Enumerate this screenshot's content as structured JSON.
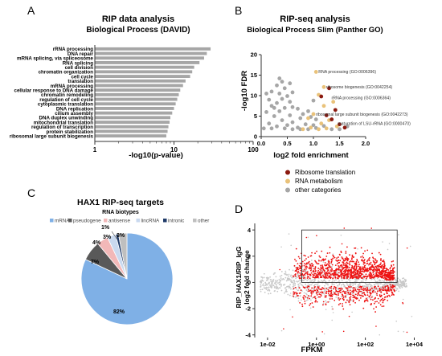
{
  "panels": {
    "A": {
      "letter": "A"
    },
    "B": {
      "letter": "B"
    },
    "C": {
      "letter": "C"
    },
    "D": {
      "letter": "D"
    }
  },
  "colors": {
    "bar_gray": "#a6a6a6",
    "ribosome": "#8b1a10",
    "rna": "#e9c27a",
    "other": "#a6a6a6",
    "mrna": "#7fb0e6",
    "pseudogene": "#595959",
    "antisense": "#f2b8b8",
    "lincrna": "#c9d9ef",
    "intronic": "#1f3a68",
    "other_biotype": "#bfbfbf",
    "red": "#ee1111",
    "light_gray": "#c8c8c8"
  },
  "chart_data": [
    {
      "type": "bar",
      "panel": "A",
      "orientation": "horizontal",
      "title": "RIP data analysis",
      "subtitle": "Biological Process (DAVID)",
      "xlabel": "-log10(p-value)",
      "xscale": "log",
      "xlim": [
        1,
        100
      ],
      "xticks": [
        "1",
        "10",
        "100"
      ],
      "xtick_values": [
        1,
        10,
        100
      ],
      "categories": [
        "rRNA processing",
        "DNA repair",
        "mRNA splicing, via spliceosome",
        "RNA splicing",
        "cell division",
        "chromatin organization",
        "cell cycle",
        "translation",
        "mRNA processing",
        "cellular response to DNA damage",
        "chromatin remodeling",
        "regulation of cell cycle",
        "cytoplasmic translation",
        "DNA replication",
        "cilium assembly",
        "DNA duplex unwinding",
        "mitochondrial translation",
        "regulation of transcription",
        "protein stabilization",
        "ribosomal large subunit biogenesis"
      ],
      "values": [
        29,
        26,
        24,
        21,
        18,
        17,
        16,
        14,
        13,
        12,
        11.5,
        11,
        10.5,
        10,
        9.5,
        9,
        8.8,
        8.5,
        8.3,
        8
      ]
    },
    {
      "type": "scatter",
      "panel": "B",
      "title": "RIP-seq analysis",
      "subtitle": "Biological Process Slim (Panther GO)",
      "xlabel": "log2 fold enrichment",
      "ylabel": "-log10 FDR",
      "xlim": [
        0,
        2.0
      ],
      "ylim": [
        0,
        20
      ],
      "xticks": [
        "0.0",
        "0.5",
        "1.0",
        "1.5",
        "2.0"
      ],
      "xtick_values": [
        0,
        0.5,
        1.0,
        1.5,
        2.0
      ],
      "yticks": [
        "0",
        "5",
        "10",
        "15",
        "20"
      ],
      "ytick_values": [
        0,
        5,
        10,
        15,
        20
      ],
      "legend_position": "bottom",
      "series": [
        {
          "name": "Ribosome translation",
          "color_key": "ribosome",
          "points": [
            [
              1.3,
              11.8
            ],
            [
              1.15,
              9.8
            ],
            [
              1.42,
              6.5
            ],
            [
              1.25,
              5.2
            ],
            [
              1.5,
              3.0
            ],
            [
              1.6,
              2.2
            ],
            [
              1.35,
              4.2
            ]
          ]
        },
        {
          "name": "RNA metabolism",
          "color_key": "rna",
          "points": [
            [
              1.05,
              15.8
            ],
            [
              1.2,
              12.1
            ],
            [
              1.1,
              10.2
            ],
            [
              1.38,
              8.5
            ],
            [
              1.2,
              7.5
            ],
            [
              1.0,
              5.5
            ],
            [
              0.9,
              4.5
            ],
            [
              1.3,
              4.0
            ],
            [
              1.15,
              3.2
            ],
            [
              1.45,
              2.5
            ],
            [
              0.95,
              2.2
            ],
            [
              1.25,
              2.0
            ],
            [
              0.8,
              1.8
            ],
            [
              1.1,
              1.8
            ]
          ]
        },
        {
          "name": "other categories",
          "color_key": "other",
          "points": [
            [
              0.35,
              14.2
            ],
            [
              0.4,
              13.4
            ],
            [
              0.3,
              12.5
            ],
            [
              0.45,
              11.8
            ],
            [
              0.2,
              11.0
            ],
            [
              0.1,
              10.5
            ],
            [
              0.35,
              10.5
            ],
            [
              0.5,
              9.9
            ],
            [
              0.15,
              9.0
            ],
            [
              0.4,
              9.2
            ],
            [
              0.55,
              8.5
            ],
            [
              0.3,
              8.2
            ],
            [
              0.2,
              7.5
            ],
            [
              0.6,
              7.2
            ],
            [
              0.45,
              7.0
            ],
            [
              0.7,
              6.8
            ],
            [
              0.1,
              6.0
            ],
            [
              0.35,
              6.2
            ],
            [
              0.8,
              5.5
            ],
            [
              0.9,
              6.2
            ],
            [
              0.55,
              5.2
            ],
            [
              0.25,
              5.0
            ],
            [
              0.75,
              4.5
            ],
            [
              0.95,
              4.8
            ],
            [
              1.05,
              4.2
            ],
            [
              0.4,
              4.0
            ],
            [
              0.6,
              3.5
            ],
            [
              0.15,
              3.2
            ],
            [
              0.85,
              3.0
            ],
            [
              0.5,
              2.8
            ],
            [
              0.3,
              2.5
            ],
            [
              0.7,
              2.2
            ],
            [
              1.0,
              2.8
            ],
            [
              0.05,
              2.0
            ],
            [
              0.2,
              2.0
            ],
            [
              0.45,
              2.0
            ],
            [
              0.6,
              1.8
            ],
            [
              0.75,
              1.8
            ],
            [
              0.9,
              1.8
            ],
            [
              1.05,
              2.1
            ],
            [
              1.2,
              2.6
            ],
            [
              1.35,
              1.8
            ],
            [
              1.5,
              1.8
            ],
            [
              1.65,
              2.5
            ],
            [
              0.55,
              13.0
            ],
            [
              0.6,
              10.8
            ],
            [
              1.0,
              8.8
            ],
            [
              0.25,
              7.0
            ]
          ]
        }
      ],
      "annotations": [
        {
          "text": "RNA processing (GO:0006396)",
          "x": 1.05,
          "y": 15.8
        },
        {
          "text": "ribosome biogenesis (GO:0042254)",
          "x": 1.2,
          "y": 12.1
        },
        {
          "text": "rRNA processing (GO:0006364)",
          "x": 1.3,
          "y": 9.5
        },
        {
          "text": "ribosomal large subunit biogenesis (GO:0042273)",
          "x": 1.0,
          "y": 5.5
        },
        {
          "text": "maturation of LSU-rRNA (GO:0000470)",
          "x": 1.42,
          "y": 3.2
        }
      ]
    },
    {
      "type": "pie",
      "panel": "C",
      "title": "HAX1 RIP-seq targets",
      "subtitle": "RNA biotypes",
      "legend_position": "top",
      "labels": [
        "mRNA",
        "pseudogene",
        "antisense",
        "lincRNA",
        "intronic",
        "other"
      ],
      "color_keys": [
        "mrna",
        "pseudogene",
        "antisense",
        "lincrna",
        "intronic",
        "other_biotype"
      ],
      "values": [
        82,
        7,
        4,
        3,
        1,
        3
      ],
      "value_labels": [
        "82%",
        "7%",
        "4%",
        "3%",
        "1%",
        "3%"
      ]
    },
    {
      "type": "scatter",
      "panel": "D",
      "xlabel": "FPKM",
      "ylabel": "RIP_HAX1/RIP_IgG log2 fold change",
      "ylabel_lines": [
        "RIP_HAX1/RIP_IgG",
        "log2 fold change"
      ],
      "xscale": "log",
      "xlim": [
        0.003,
        30000
      ],
      "ylim": [
        -4.2,
        4.5
      ],
      "xticks": [
        "1e-02",
        "1e+00",
        "1e+02",
        "1e+04"
      ],
      "xtick_values": [
        0.01,
        1,
        100,
        10000
      ],
      "yticks": [
        "-4",
        "-2",
        "0",
        "2",
        "4"
      ],
      "ytick_values": [
        -4,
        -2,
        0,
        2,
        4
      ],
      "highlight_box": {
        "x": [
          0.25,
          2000
        ],
        "y": [
          0,
          4.0
        ]
      }
    }
  ]
}
